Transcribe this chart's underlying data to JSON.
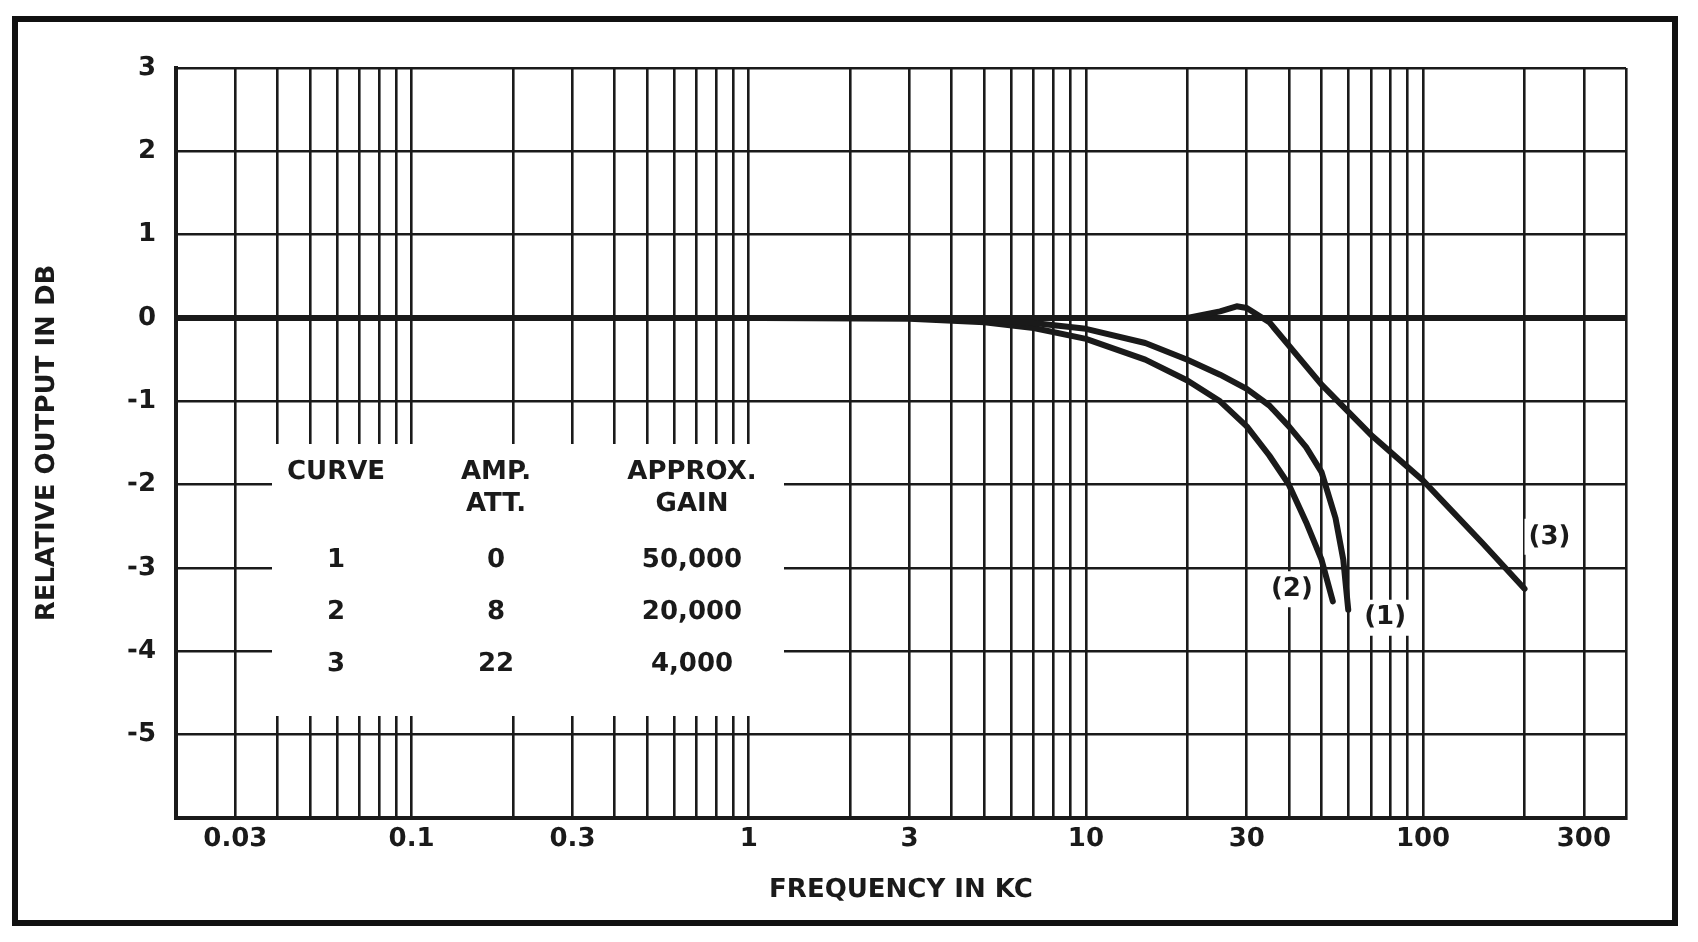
{
  "chart_data": {
    "type": "line",
    "xlabel": "FREQUENCY IN KC",
    "ylabel": "RELATIVE OUTPUT IN DB",
    "log": "x",
    "grid": true,
    "marker": "none",
    "line_style": "solid",
    "xlim": [
      0.02,
      400
    ],
    "ylim": [
      -6,
      3
    ],
    "yticks": [
      -5,
      -4,
      -3,
      -2,
      -1,
      0,
      1,
      2,
      3
    ],
    "xticks": [
      {
        "value": 0.02,
        "label": null
      },
      0.03,
      {
        "value": 0.04,
        "label": null
      },
      {
        "value": 0.05,
        "label": null
      },
      {
        "value": 0.06,
        "label": null
      },
      {
        "value": 0.07,
        "label": null
      },
      {
        "value": 0.08,
        "label": null
      },
      {
        "value": 0.09,
        "label": null
      },
      0.1,
      {
        "value": 0.2,
        "label": null
      },
      0.3,
      {
        "value": 0.4,
        "label": null
      },
      {
        "value": 0.5,
        "label": null
      },
      {
        "value": 0.6,
        "label": null
      },
      {
        "value": 0.7,
        "label": null
      },
      {
        "value": 0.8,
        "label": null
      },
      {
        "value": 0.9,
        "label": null
      },
      1,
      {
        "value": 2,
        "label": null
      },
      3,
      {
        "value": 4,
        "label": null
      },
      {
        "value": 5,
        "label": null
      },
      {
        "value": 6,
        "label": null
      },
      {
        "value": 7,
        "label": null
      },
      {
        "value": 8,
        "label": null
      },
      {
        "value": 9,
        "label": null
      },
      10,
      {
        "value": 20,
        "label": null
      },
      30,
      {
        "value": 40,
        "label": null
      },
      {
        "value": 50,
        "label": null
      },
      {
        "value": 60,
        "label": null
      },
      {
        "value": 70,
        "label": null
      },
      {
        "value": 80,
        "label": null
      },
      {
        "value": 90,
        "label": null
      },
      100,
      {
        "value": 200,
        "label": null
      },
      300,
      {
        "value": 400,
        "label": null
      }
    ],
    "series": [
      {
        "name": "(1)",
        "color": "#1a1a1a",
        "x": [
          0.02,
          1,
          3,
          5,
          7,
          10,
          15,
          20,
          25,
          30,
          35,
          40,
          45,
          50,
          55,
          58,
          60
        ],
        "values": [
          0,
          0,
          0,
          -0.02,
          -0.06,
          -0.13,
          -0.3,
          -0.5,
          -0.68,
          -0.85,
          -1.05,
          -1.3,
          -1.55,
          -1.85,
          -2.4,
          -2.9,
          -3.5
        ]
      },
      {
        "name": "(2)",
        "color": "#1a1a1a",
        "x": [
          0.02,
          1,
          3,
          5,
          7,
          10,
          15,
          20,
          25,
          30,
          35,
          40,
          45,
          50,
          54
        ],
        "values": [
          0,
          0,
          -0.01,
          -0.05,
          -0.12,
          -0.25,
          -0.5,
          -0.75,
          -1,
          -1.3,
          -1.65,
          -2,
          -2.45,
          -2.9,
          -3.4
        ]
      },
      {
        "name": "(3)",
        "color": "#1a1a1a",
        "x": [
          0.02,
          1,
          10,
          20,
          25,
          28,
          30,
          35,
          50,
          70,
          100,
          150,
          200
        ],
        "values": [
          0,
          0,
          0,
          0,
          0.08,
          0.14,
          0.12,
          -0.05,
          -0.8,
          -1.4,
          -1.95,
          -2.7,
          -3.25
        ]
      }
    ],
    "annotations": [
      "CURVE",
      "AMP.\nATT.",
      "APPROX.\nGAIN",
      "1",
      "0",
      "50,000",
      "2",
      "8",
      "20,000",
      "3",
      "22",
      "4,000"
    ]
  }
}
